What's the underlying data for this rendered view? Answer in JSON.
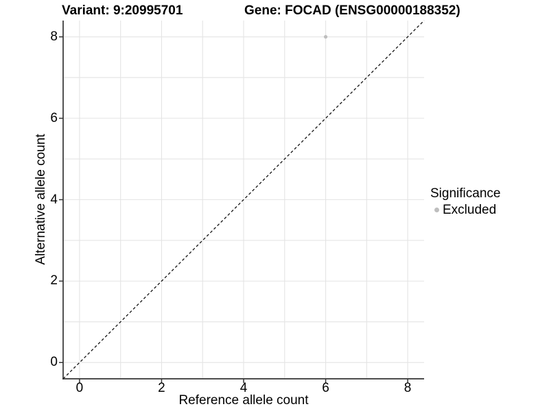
{
  "chart_data": {
    "type": "scatter",
    "title_left": "Variant: 9:20995701",
    "title_right": "Gene: FOCAD (ENSG00000188352)",
    "xlabel": "Reference allele count",
    "ylabel": "Alternative allele count",
    "xlim": [
      -0.4,
      8.4
    ],
    "ylim": [
      -0.4,
      8.4
    ],
    "xticks": [
      0,
      2,
      4,
      6,
      8
    ],
    "yticks": [
      0,
      2,
      4,
      6,
      8
    ],
    "grid_positions": [
      0,
      1,
      2,
      3,
      4,
      5,
      6,
      7,
      8
    ],
    "grid": true,
    "points": [
      {
        "x": 6,
        "y": 8,
        "series": "Excluded"
      }
    ],
    "identity_line": {
      "style": "dashed",
      "slope": 1,
      "intercept": 0
    },
    "legend": {
      "title": "Significance",
      "position": "right",
      "items": [
        {
          "label": "Excluded",
          "color": "#bebebe",
          "marker": "circle"
        }
      ]
    }
  },
  "colors": {
    "background": "#ffffff",
    "grid": "#e4e4e4",
    "axis": "#333333",
    "dashed_line": "#111111",
    "point": "#bebebe",
    "text": "#000000"
  }
}
